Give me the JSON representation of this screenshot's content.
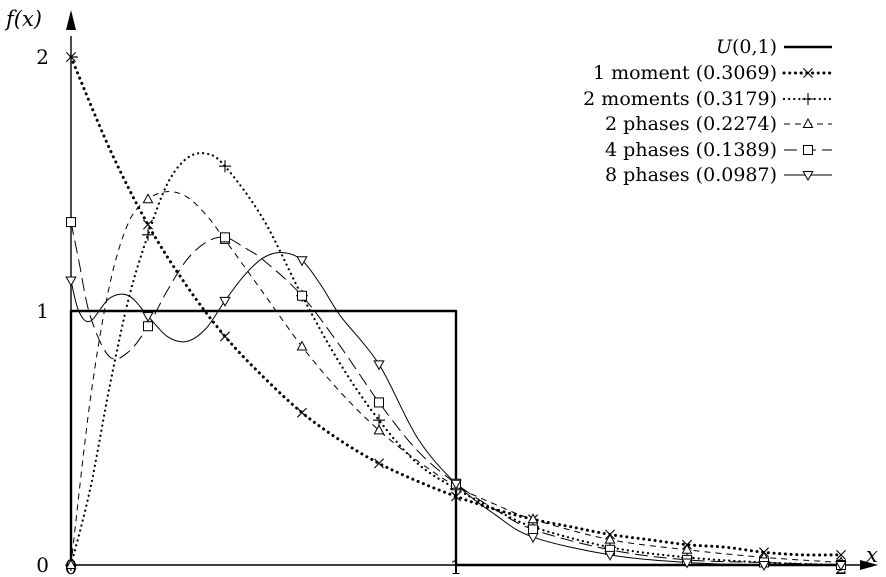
{
  "chart_data": {
    "type": "line",
    "title": "",
    "xlabel": "x",
    "ylabel": "f(x)",
    "xlim": [
      0,
      2
    ],
    "ylim": [
      0,
      2
    ],
    "xticks": [
      "0",
      "1",
      "2"
    ],
    "yticks": [
      "0",
      "1",
      "2"
    ],
    "grid": false,
    "legend_position": "top-right",
    "series": [
      {
        "name": "U(0,1)",
        "style": "solid-thick",
        "marker": "none",
        "color": "#000000",
        "x": [
          0,
          0,
          1,
          1,
          2
        ],
        "y": [
          0,
          1,
          1,
          0,
          0
        ]
      },
      {
        "name": "1 moment (0.3069)",
        "style": "dotted-thick",
        "marker": "x",
        "color": "#000000",
        "x": [
          0,
          0.1,
          0.2,
          0.3,
          0.4,
          0.5,
          0.6,
          0.7,
          0.8,
          0.9,
          1.0,
          1.1,
          1.2,
          1.3,
          1.4,
          1.5,
          1.6,
          1.7,
          1.8,
          1.9,
          2.0
        ],
        "y": [
          2.0,
          1.64,
          1.34,
          1.1,
          0.9,
          0.74,
          0.6,
          0.49,
          0.4,
          0.33,
          0.27,
          0.22,
          0.18,
          0.15,
          0.12,
          0.1,
          0.08,
          0.07,
          0.05,
          0.04,
          0.04
        ],
        "marker_x": [
          0,
          0.2,
          0.4,
          0.6,
          0.8,
          1.0,
          1.2,
          1.4,
          1.6,
          1.8,
          2.0
        ],
        "marker_y": [
          2.0,
          1.34,
          0.9,
          0.6,
          0.4,
          0.27,
          0.18,
          0.12,
          0.08,
          0.05,
          0.04
        ]
      },
      {
        "name": "2 moments (0.3179)",
        "style": "dotted",
        "marker": "plus",
        "color": "#000000",
        "x": [
          0,
          0.05,
          0.1,
          0.15,
          0.2,
          0.25,
          0.3,
          0.35,
          0.4,
          0.5,
          0.6,
          0.7,
          0.8,
          0.9,
          1.0,
          1.1,
          1.2,
          1.4,
          1.6,
          1.8,
          2.0
        ],
        "y": [
          0,
          0.3,
          0.7,
          1.05,
          1.3,
          1.5,
          1.6,
          1.62,
          1.57,
          1.36,
          1.06,
          0.79,
          0.57,
          0.4,
          0.3,
          0.22,
          0.15,
          0.07,
          0.03,
          0.01,
          0.0
        ],
        "marker_x": [
          0,
          0.2,
          0.4,
          0.6,
          0.8,
          1.0,
          1.2,
          1.4,
          1.6,
          1.8,
          2.0
        ],
        "marker_y": [
          0,
          1.3,
          1.57,
          1.06,
          0.57,
          0.3,
          0.15,
          0.07,
          0.03,
          0.01,
          0.0
        ]
      },
      {
        "name": "2 phases (0.2274)",
        "style": "dashed",
        "marker": "triangle-up",
        "color": "#000000",
        "x": [
          0,
          0.05,
          0.1,
          0.15,
          0.2,
          0.25,
          0.3,
          0.35,
          0.4,
          0.5,
          0.6,
          0.7,
          0.8,
          0.9,
          1.0,
          1.1,
          1.2,
          1.4,
          1.6,
          1.8,
          2.0
        ],
        "y": [
          0,
          0.65,
          1.1,
          1.35,
          1.44,
          1.47,
          1.45,
          1.38,
          1.28,
          1.07,
          0.86,
          0.68,
          0.53,
          0.41,
          0.31,
          0.24,
          0.18,
          0.1,
          0.06,
          0.03,
          0.01
        ],
        "marker_x": [
          0,
          0.2,
          0.4,
          0.6,
          0.8,
          1.0,
          1.2,
          1.4,
          1.6,
          1.8,
          2.0
        ],
        "marker_y": [
          0,
          1.44,
          1.28,
          0.86,
          0.53,
          0.31,
          0.18,
          0.1,
          0.06,
          0.03,
          0.01
        ]
      },
      {
        "name": "4 phases (0.1389)",
        "style": "long-dashed",
        "marker": "square",
        "color": "#000000",
        "x": [
          0,
          0.02,
          0.05,
          0.1,
          0.15,
          0.2,
          0.25,
          0.3,
          0.35,
          0.4,
          0.45,
          0.5,
          0.6,
          0.7,
          0.8,
          0.9,
          1.0,
          1.1,
          1.2,
          1.4,
          1.6,
          1.8,
          2.0
        ],
        "y": [
          1.35,
          1.2,
          0.98,
          0.82,
          0.84,
          0.94,
          1.08,
          1.2,
          1.27,
          1.29,
          1.25,
          1.2,
          1.06,
          0.86,
          0.64,
          0.45,
          0.32,
          0.22,
          0.14,
          0.06,
          0.02,
          0.01,
          0.0
        ],
        "marker_x": [
          0,
          0.2,
          0.4,
          0.6,
          0.8,
          1.0,
          1.2,
          1.4,
          1.6,
          1.8,
          2.0
        ],
        "marker_y": [
          1.35,
          0.94,
          1.29,
          1.06,
          0.64,
          0.32,
          0.14,
          0.06,
          0.02,
          0.01,
          0.0
        ]
      },
      {
        "name": "8 phases (0.0987)",
        "style": "solid-thin",
        "marker": "triangle-down",
        "color": "#000000",
        "x": [
          0,
          0.02,
          0.05,
          0.1,
          0.15,
          0.2,
          0.25,
          0.3,
          0.35,
          0.4,
          0.45,
          0.5,
          0.55,
          0.6,
          0.65,
          0.7,
          0.8,
          0.9,
          1.0,
          1.1,
          1.2,
          1.4,
          1.6,
          1.8,
          2.0
        ],
        "y": [
          1.12,
          1.0,
          0.96,
          1.05,
          1.06,
          0.98,
          0.9,
          0.88,
          0.93,
          1.04,
          1.14,
          1.21,
          1.23,
          1.2,
          1.1,
          0.98,
          0.79,
          0.5,
          0.32,
          0.2,
          0.11,
          0.04,
          0.01,
          0.0,
          0.0
        ],
        "marker_x": [
          0,
          0.2,
          0.4,
          0.6,
          0.8,
          1.0,
          1.2,
          1.4,
          1.6,
          1.8,
          2.0
        ],
        "marker_y": [
          1.12,
          0.98,
          1.04,
          1.2,
          0.79,
          0.32,
          0.11,
          0.04,
          0.01,
          0.0,
          0.0
        ]
      }
    ]
  }
}
